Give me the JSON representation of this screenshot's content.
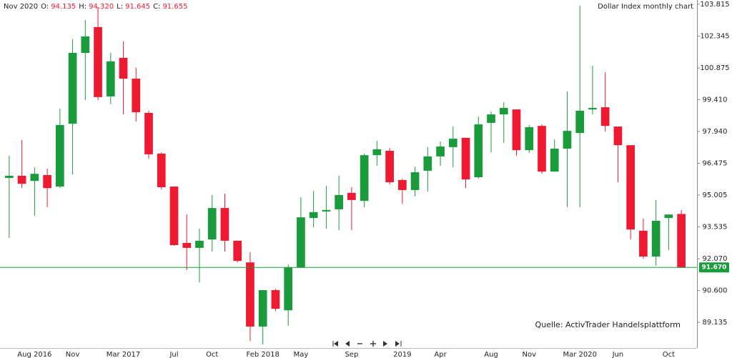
{
  "chart_data": {
    "type": "candlestick",
    "title": "Dollar Index monthly chart",
    "readout": {
      "date": "Nov 2020",
      "items": [
        {
          "key": "O:",
          "value": "94.135"
        },
        {
          "key": "H:",
          "value": "94.320"
        },
        {
          "key": "L:",
          "value": "91.645"
        },
        {
          "key": "C:",
          "value": "91.655"
        }
      ]
    },
    "source": "Quelle: ActivTrader Handelsplattform",
    "categories": [
      null,
      null,
      "Aug 2016",
      null,
      null,
      "Nov",
      null,
      null,
      null,
      "Mar 2017",
      null,
      null,
      null,
      "Jul",
      null,
      null,
      "Oct",
      null,
      null,
      null,
      "Feb 2018",
      null,
      null,
      "May",
      null,
      null,
      null,
      "Sep",
      null,
      null,
      null,
      "2019",
      null,
      null,
      "Apr",
      null,
      null,
      null,
      "Aug",
      null,
      null,
      "Nov",
      null,
      null,
      null,
      "Mar 2020",
      null,
      null,
      "Jun",
      null,
      null,
      null,
      "Oct",
      null
    ],
    "open": [
      95.8,
      95.9,
      95.66,
      95.93,
      95.4,
      98.3,
      101.57,
      102.76,
      99.56,
      101.34,
      100.38,
      98.8,
      96.92,
      95.4,
      92.8,
      92.57,
      92.96,
      94.41,
      92.9,
      91.9,
      88.94,
      90.62,
      89.69,
      91.67,
      93.95,
      94.25,
      94.35,
      95.11,
      94.74,
      96.85,
      97.05,
      95.7,
      95.24,
      96.13,
      96.79,
      97.22,
      97.65,
      95.83,
      98.34,
      98.73,
      98.96,
      97.08,
      98.2,
      96.09,
      97.15,
      97.87,
      98.96,
      99.06,
      98.17,
      97.31,
      93.36,
      92.17,
      93.95,
      94.135
    ],
    "high": [
      96.82,
      97.55,
      96.29,
      96.23,
      99.0,
      102.2,
      103.09,
      103.68,
      101.57,
      102.1,
      100.88,
      98.9,
      96.98,
      95.4,
      94.11,
      93.46,
      95.01,
      95.07,
      92.9,
      92.37,
      90.62,
      90.68,
      91.8,
      94.91,
      95.2,
      95.44,
      95.9,
      95.37,
      96.92,
      97.51,
      97.18,
      95.77,
      96.32,
      97.22,
      97.48,
      98.17,
      97.65,
      98.63,
      98.86,
      99.29,
      98.96,
      98.24,
      98.27,
      97.58,
      99.79,
      103.75,
      100.98,
      100.68,
      98.17,
      97.31,
      93.92,
      94.78,
      94.11,
      94.32
    ],
    "low": [
      93.03,
      95.33,
      94.05,
      94.45,
      95.33,
      95.96,
      99.39,
      99.39,
      99.2,
      98.73,
      98.4,
      96.69,
      95.27,
      92.67,
      91.54,
      90.98,
      92.4,
      92.4,
      91.9,
      88.27,
      88.11,
      89.66,
      88.97,
      91.64,
      93.52,
      93.46,
      93.39,
      93.39,
      94.45,
      96.36,
      95.5,
      94.61,
      94.94,
      95.17,
      96.36,
      96.29,
      95.33,
      95.76,
      96.98,
      97.41,
      96.82,
      96.95,
      95.99,
      96.09,
      94.45,
      94.45,
      98.73,
      97.94,
      95.6,
      92.96,
      92.07,
      91.74,
      92.47,
      91.645
    ],
    "close": [
      95.9,
      95.53,
      95.99,
      95.33,
      98.24,
      101.57,
      102.33,
      99.53,
      101.18,
      100.38,
      98.83,
      96.89,
      95.37,
      92.7,
      92.57,
      92.9,
      94.41,
      92.9,
      91.97,
      88.94,
      90.62,
      89.76,
      91.67,
      93.98,
      94.22,
      94.32,
      95.01,
      94.78,
      96.85,
      97.12,
      95.6,
      95.24,
      96.06,
      96.79,
      97.25,
      97.61,
      95.73,
      98.27,
      98.73,
      99.03,
      97.08,
      98.14,
      96.09,
      97.15,
      97.97,
      98.9,
      99.03,
      98.2,
      97.31,
      93.42,
      92.17,
      93.82,
      94.11,
      91.655
    ],
    "up_color": "#1a9c3c",
    "down_color": "#f01932",
    "last_price": {
      "value": 91.67,
      "label": "91.670"
    },
    "ylim": [
      87.95,
      104.01
    ],
    "yticks": [
      103.815,
      102.345,
      {
        "value": 100.875,
        "label": "100.875"
      },
      {
        "value": 99.41,
        "label": "99.410"
      },
      {
        "value": 97.94,
        "label": "97.940"
      },
      96.475,
      95.005,
      93.535,
      {
        "value": 92.07,
        "label": "92.070"
      },
      {
        "value": 90.6,
        "label": "90.600"
      },
      89.135
    ]
  }
}
